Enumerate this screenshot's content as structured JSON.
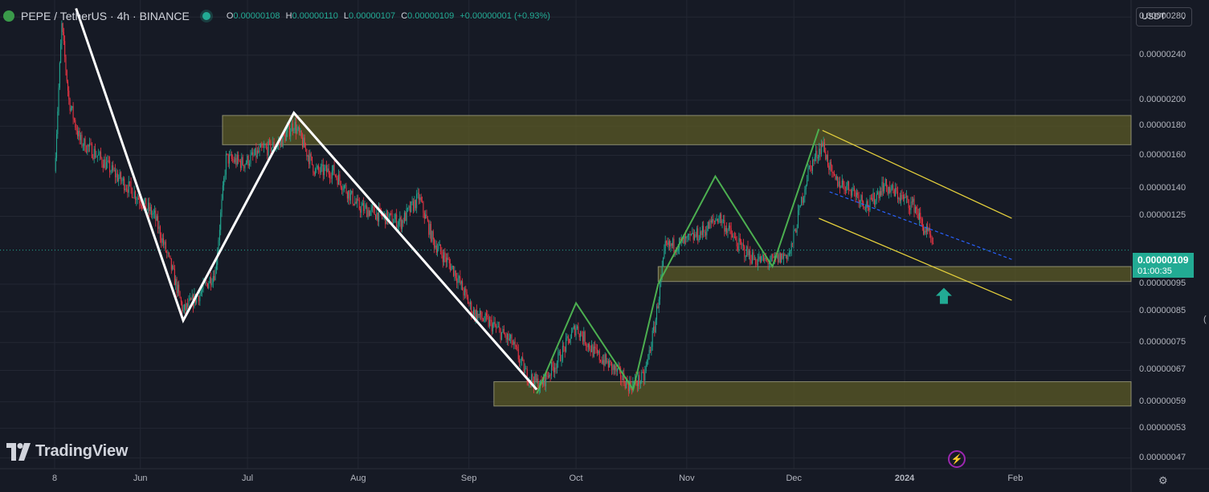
{
  "header": {
    "title": "PEPE / TetherUS · 4h · BINANCE",
    "ohlc": {
      "o_key": "O",
      "o_val": "0.00000108",
      "h_key": "H",
      "h_val": "0.00000110",
      "l_key": "L",
      "l_val": "0.00000107",
      "c_key": "C",
      "c_val": "0.00000109",
      "change": "+0.00000001 (+0.93%)"
    }
  },
  "currency_selector": {
    "value": "USDT",
    "chevron": "chevron-down-icon"
  },
  "price_axis": [
    "0.00000280",
    "0.00000240",
    "0.00000200",
    "0.00000180",
    "0.00000160",
    "0.00000140",
    "0.00000125",
    "0.00000095",
    "0.00000085",
    "0.00000075",
    "0.00000067",
    "0.00000059",
    "0.00000053",
    "0.00000047"
  ],
  "time_axis": [
    "8",
    "Jun",
    "Jul",
    "Aug",
    "Sep",
    "Oct",
    "Nov",
    "Dec",
    "2024",
    "Feb"
  ],
  "current_price": {
    "price": "0.00000109",
    "countdown": "01:00:35"
  },
  "branding": {
    "logo_text": "TradingView",
    "icon": "tradingview-logo-icon"
  },
  "icons": {
    "settings": "gear-icon",
    "bolt": "lightning-icon",
    "arrow": "up-arrow-icon"
  },
  "colors": {
    "background": "#161a25",
    "up": "#22ab94",
    "down": "#f23645",
    "zone_fill": "#5b5a26",
    "zone_border": "#c8c8a0",
    "white_line": "#ffffff",
    "green_line": "#4caf50",
    "yellow_line": "#e5d03c",
    "dashed_line": "#2962ff"
  },
  "chart_data": {
    "type": "candlestick",
    "symbol": "PEPE / TetherUS",
    "interval": "4h",
    "exchange": "BINANCE",
    "y_scale": "log",
    "ylim": [
      4.5e-07,
      3e-06
    ],
    "x_range": [
      "2023-05-08",
      "2024-02-08"
    ],
    "grid": true,
    "zones": [
      {
        "from": 1.67e-06,
        "to": 1.88e-06,
        "start": "2023-06-24",
        "end": "2024-02-08"
      },
      {
        "from": 9.6e-07,
        "to": 1.02e-06,
        "start": "2023-10-24",
        "end": "2024-02-08"
      },
      {
        "from": 5.8e-07,
        "to": 6.4e-07,
        "start": "2023-09-08",
        "end": "2024-02-08"
      }
    ],
    "white_swing_points": [
      [
        "2023-05-14",
        2.9e-06
      ],
      [
        "2023-06-13",
        8.2e-07
      ],
      [
        "2023-07-14",
        1.9e-06
      ],
      [
        "2023-09-20",
        6.2e-07
      ]
    ],
    "green_swing_points": [
      [
        "2023-09-20",
        6.1e-07
      ],
      [
        "2023-10-01",
        8.8e-07
      ],
      [
        "2023-10-17",
        6.2e-07
      ],
      [
        "2023-10-24",
        9.5e-07
      ],
      [
        "2023-11-09",
        1.47e-06
      ],
      [
        "2023-11-25",
        1.02e-06
      ],
      [
        "2023-12-08",
        1.78e-06
      ]
    ],
    "channel": {
      "upper": [
        [
          "2023-12-09",
          1.77e-06
        ],
        [
          "2024-01-31",
          1.24e-06
        ]
      ],
      "lower": [
        [
          "2023-12-08",
          1.24e-06
        ],
        [
          "2024-01-31",
          8.9e-07
        ]
      ],
      "mid_dashed": [
        [
          "2023-12-11",
          1.38e-06
        ],
        [
          "2024-01-31",
          1.05e-06
        ]
      ]
    },
    "arrow": {
      "date": "2024-01-12",
      "price": 9e-07,
      "direction": "up"
    },
    "path": [
      [
        "2023-05-08",
        1.5e-06
      ],
      [
        "2023-05-10",
        2.7e-06
      ],
      [
        "2023-05-12",
        2e-06
      ],
      [
        "2023-05-15",
        1.7e-06
      ],
      [
        "2023-05-20",
        1.6e-06
      ],
      [
        "2023-05-25",
        1.48e-06
      ],
      [
        "2023-05-30",
        1.38e-06
      ],
      [
        "2023-06-05",
        1.25e-06
      ],
      [
        "2023-06-10",
        1e-06
      ],
      [
        "2023-06-13",
        8.5e-07
      ],
      [
        "2023-06-18",
        9.2e-07
      ],
      [
        "2023-06-22",
        1e-06
      ],
      [
        "2023-06-25",
        1.58e-06
      ],
      [
        "2023-06-30",
        1.55e-06
      ],
      [
        "2023-07-05",
        1.63e-06
      ],
      [
        "2023-07-10",
        1.68e-06
      ],
      [
        "2023-07-14",
        1.82e-06
      ],
      [
        "2023-07-20",
        1.5e-06
      ],
      [
        "2023-07-25",
        1.5e-06
      ],
      [
        "2023-08-01",
        1.3e-06
      ],
      [
        "2023-08-08",
        1.25e-06
      ],
      [
        "2023-08-13",
        1.22e-06
      ],
      [
        "2023-08-18",
        1.35e-06
      ],
      [
        "2023-08-22",
        1.13e-06
      ],
      [
        "2023-08-28",
        1e-06
      ],
      [
        "2023-09-02",
        8.5e-07
      ],
      [
        "2023-09-08",
        8e-07
      ],
      [
        "2023-09-13",
        7.5e-07
      ],
      [
        "2023-09-17",
        6.6e-07
      ],
      [
        "2023-09-21",
        6.3e-07
      ],
      [
        "2023-09-26",
        7e-07
      ],
      [
        "2023-10-01",
        8e-07
      ],
      [
        "2023-10-06",
        7.2e-07
      ],
      [
        "2023-10-11",
        6.8e-07
      ],
      [
        "2023-10-16",
        6.3e-07
      ],
      [
        "2023-10-20",
        6.5e-07
      ],
      [
        "2023-10-23",
        8e-07
      ],
      [
        "2023-10-26",
        1.1e-06
      ],
      [
        "2023-11-01",
        1.13e-06
      ],
      [
        "2023-11-06",
        1.18e-06
      ],
      [
        "2023-11-10",
        1.25e-06
      ],
      [
        "2023-11-15",
        1.12e-06
      ],
      [
        "2023-11-20",
        1.05e-06
      ],
      [
        "2023-11-25",
        1.04e-06
      ],
      [
        "2023-11-30",
        1.08e-06
      ],
      [
        "2023-12-05",
        1.5e-06
      ],
      [
        "2023-12-09",
        1.68e-06
      ],
      [
        "2023-12-12",
        1.45e-06
      ],
      [
        "2023-12-17",
        1.4e-06
      ],
      [
        "2023-12-22",
        1.3e-06
      ],
      [
        "2023-12-26",
        1.42e-06
      ],
      [
        "2023-12-31",
        1.35e-06
      ],
      [
        "2024-01-04",
        1.3e-06
      ],
      [
        "2024-01-06",
        1.2e-06
      ],
      [
        "2024-01-08",
        1.15e-06
      ],
      [
        "2024-01-09",
        1.09e-06
      ]
    ]
  }
}
